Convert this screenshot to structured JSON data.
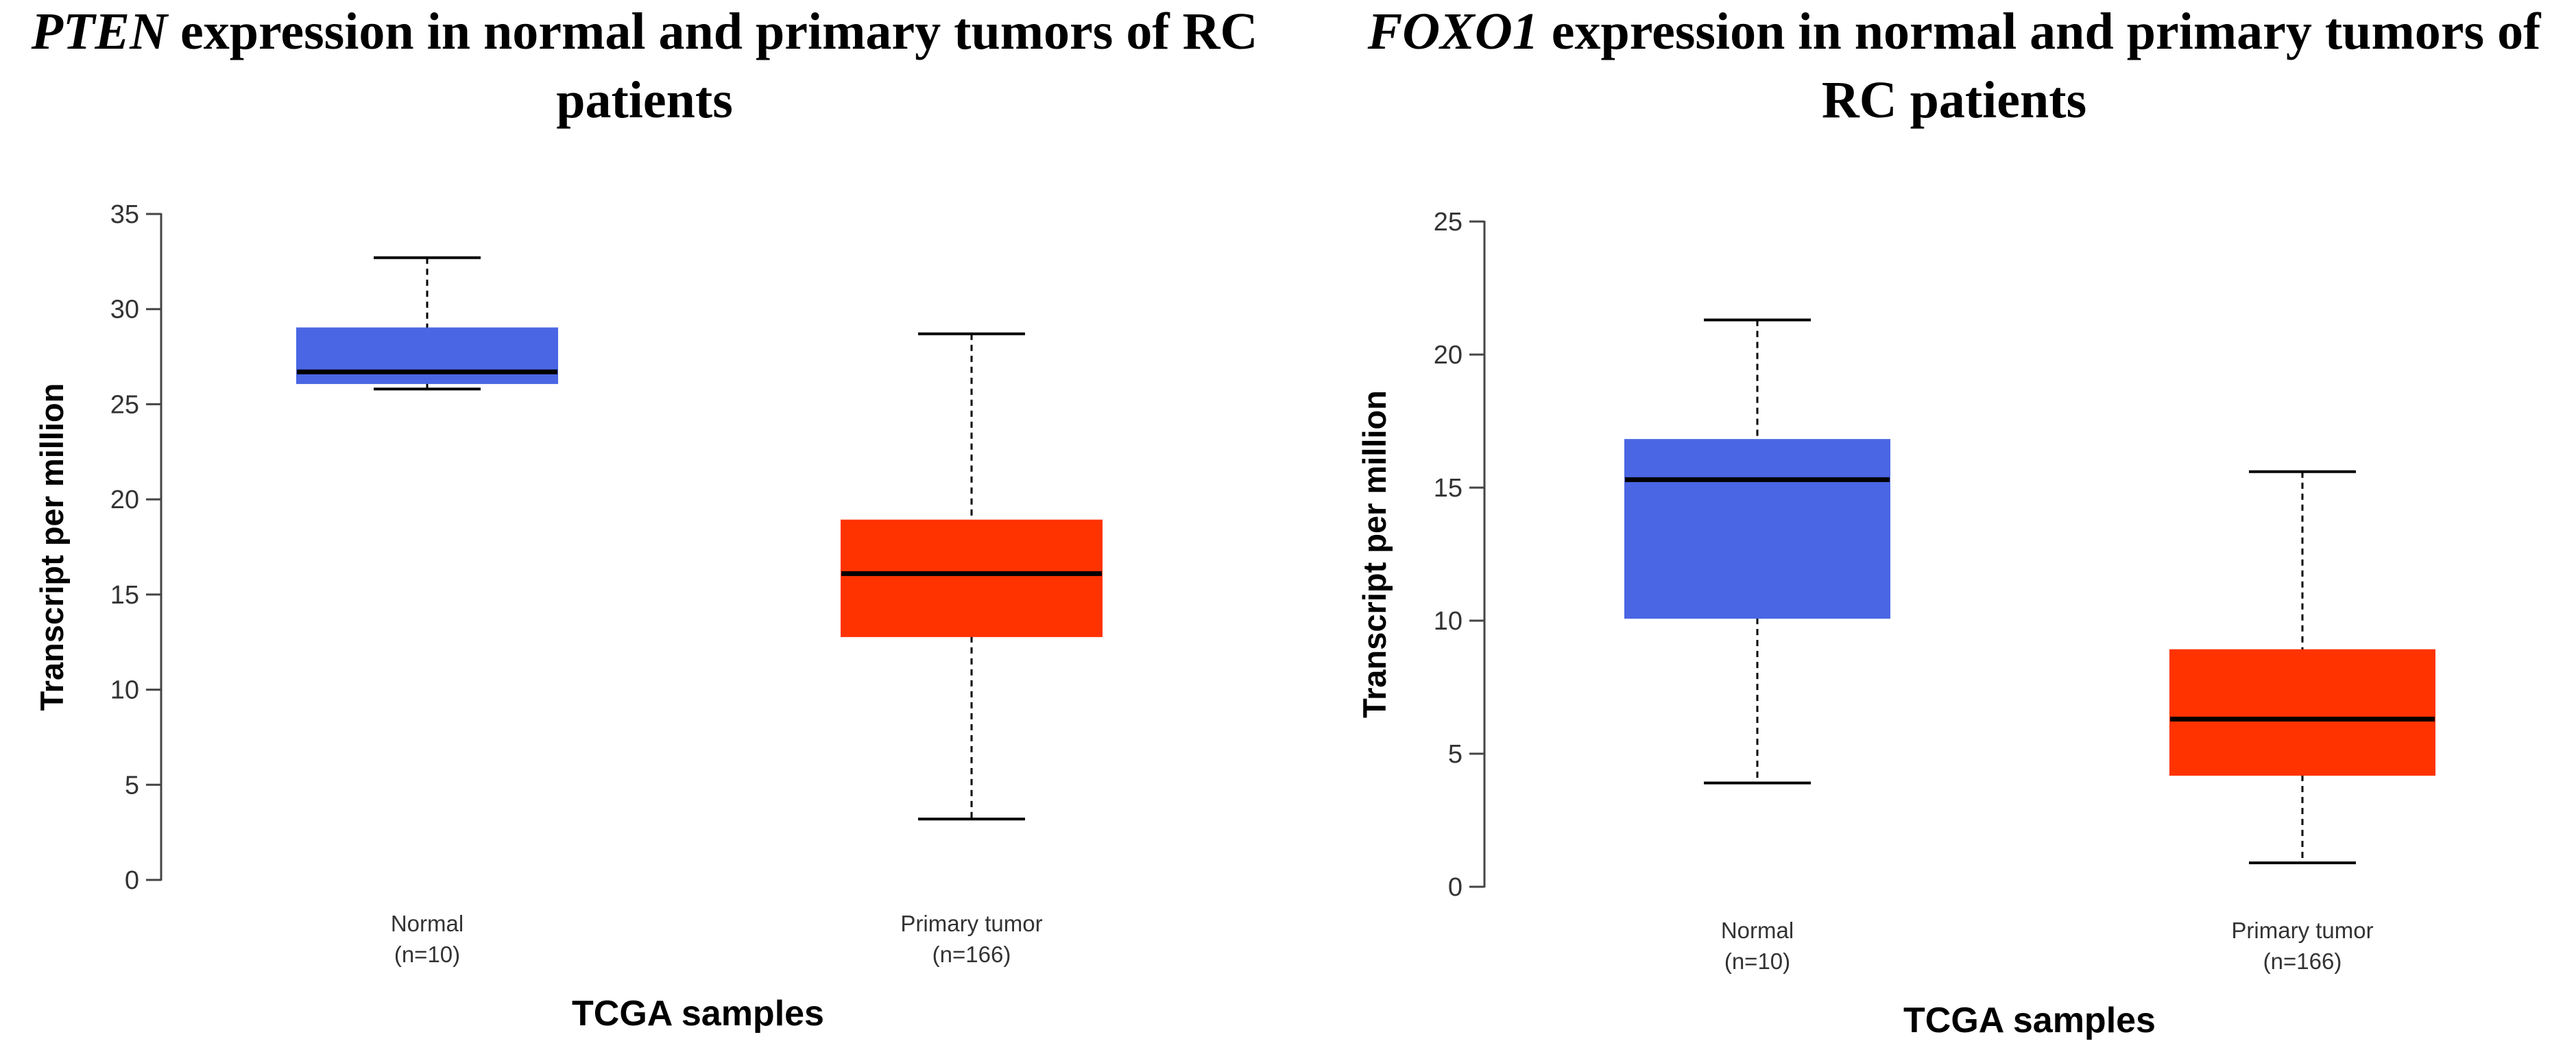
{
  "chart_data": [
    {
      "type": "box",
      "title_gene": "PTEN",
      "title_rest": " expression in normal and primary tumors of RC patients",
      "xlabel": "TCGA samples",
      "ylabel": "Transcript per million",
      "ylim": [
        0,
        35
      ],
      "yticks": [
        0,
        5,
        10,
        15,
        20,
        25,
        30,
        35
      ],
      "groups": [
        {
          "name": "Normal",
          "n": "(n=10)",
          "whisker_low": 25.8,
          "q1": 26.1,
          "median": 26.7,
          "q3": 29.0,
          "whisker_high": 32.7,
          "color": "#4a66e4"
        },
        {
          "name": "Primary tumor",
          "n": "(n=166)",
          "whisker_low": 3.2,
          "q1": 12.8,
          "median": 16.1,
          "q3": 18.9,
          "whisker_high": 28.7,
          "color": "#ff3300"
        }
      ]
    },
    {
      "type": "box",
      "title_gene": "FOXO1",
      "title_rest": " expression in normal and primary tumors of RC patients",
      "xlabel": "TCGA samples",
      "ylabel": "Transcript per million",
      "ylim": [
        0,
        25
      ],
      "yticks": [
        0,
        5,
        10,
        15,
        20,
        25
      ],
      "groups": [
        {
          "name": "Normal",
          "n": "(n=10)",
          "whisker_low": 3.9,
          "q1": 10.1,
          "median": 15.3,
          "q3": 16.8,
          "whisker_high": 21.3,
          "color": "#4a66e4"
        },
        {
          "name": "Primary tumor",
          "n": "(n=166)",
          "whisker_low": 0.9,
          "q1": 4.2,
          "median": 6.3,
          "q3": 8.9,
          "whisker_high": 15.6,
          "color": "#ff3300"
        }
      ]
    }
  ]
}
